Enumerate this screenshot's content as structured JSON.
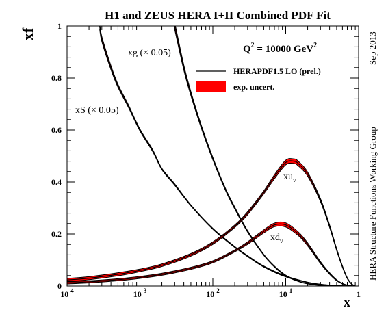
{
  "chart_data": {
    "type": "line",
    "title": "H1 and ZEUS HERA I+II Combined PDF Fit",
    "xlabel": "x",
    "ylabel": "xf",
    "x_scale": "log",
    "xlim": [
      0.0001,
      1
    ],
    "ylim": [
      0,
      1
    ],
    "x_ticks": [
      {
        "value": 0.0001,
        "base": "10",
        "exp": "-4"
      },
      {
        "value": 0.001,
        "base": "10",
        "exp": "-3"
      },
      {
        "value": 0.01,
        "base": "10",
        "exp": "-2"
      },
      {
        "value": 0.1,
        "base": "10",
        "exp": "-1"
      },
      {
        "value": 1,
        "base": "1",
        "exp": ""
      }
    ],
    "y_ticks": [
      {
        "value": 0,
        "label": "0"
      },
      {
        "value": 0.2,
        "label": "0.2"
      },
      {
        "value": 0.4,
        "label": "0.4"
      },
      {
        "value": 0.6,
        "label": "0.6"
      },
      {
        "value": 0.8,
        "label": "0.8"
      },
      {
        "value": 1,
        "label": "1"
      }
    ],
    "q2_label": {
      "prefix": "Q",
      "sup1": "2",
      "middle": " = 10000 GeV",
      "sup2": "2"
    },
    "legend": {
      "placement": "top-right",
      "entries": [
        {
          "label": "HERAPDF1.5 LO (prel.)",
          "style": "line"
        },
        {
          "label": "exp. uncert.",
          "style": "band"
        }
      ]
    },
    "side_labels": {
      "date": "Sep 2013",
      "group": "HERA Structure Functions Working Group"
    },
    "colors": {
      "central": "#000000",
      "band": "#ff0000"
    },
    "series": [
      {
        "id": "xg",
        "label_main": "xg (",
        "label_sub": "",
        "label_tail": "× 0.05)",
        "x": [
          0.00028,
          0.0003,
          0.0004,
          0.0005,
          0.0007,
          0.001,
          0.0015,
          0.002,
          0.003,
          0.005,
          0.01,
          0.02,
          0.03,
          0.05,
          0.1,
          0.2,
          0.3,
          0.5,
          0.7,
          0.9
        ],
        "y": [
          1.0,
          0.95,
          0.84,
          0.77,
          0.69,
          0.6,
          0.52,
          0.45,
          0.39,
          0.31,
          0.22,
          0.15,
          0.115,
          0.075,
          0.037,
          0.014,
          0.006,
          0.001,
          0.0002,
          0.0
        ],
        "err": [
          0.012,
          0.01,
          0.008,
          0.006,
          0.005,
          0.004,
          0.004,
          0.003,
          0.003,
          0.002,
          0.002,
          0.002,
          0.002,
          0.002,
          0.002,
          0.001,
          0.001,
          0.001,
          0.0005,
          0.0
        ]
      },
      {
        "id": "xS",
        "label_main": "xS (",
        "label_sub": "",
        "label_tail": "× 0.05)",
        "x": [
          0.003,
          0.004,
          0.005,
          0.007,
          0.01,
          0.015,
          0.02,
          0.03,
          0.05,
          0.07,
          0.1,
          0.15,
          0.2,
          0.3,
          0.5,
          0.7,
          0.9
        ],
        "y": [
          1.0,
          0.84,
          0.74,
          0.61,
          0.49,
          0.37,
          0.3,
          0.21,
          0.12,
          0.075,
          0.04,
          0.018,
          0.009,
          0.003,
          0.0005,
          0.0001,
          0.0
        ],
        "err": [
          0.014,
          0.01,
          0.008,
          0.006,
          0.005,
          0.004,
          0.004,
          0.003,
          0.002,
          0.002,
          0.002,
          0.001,
          0.001,
          0.001,
          0.0005,
          0.0002,
          0.0
        ]
      },
      {
        "id": "xuv",
        "label_main": "xu",
        "label_sub": "v",
        "label_tail": "",
        "x": [
          0.0001,
          0.0002,
          0.0005,
          0.001,
          0.002,
          0.005,
          0.01,
          0.02,
          0.03,
          0.05,
          0.07,
          0.1,
          0.13,
          0.15,
          0.2,
          0.3,
          0.4,
          0.5,
          0.6,
          0.7,
          0.8,
          0.9
        ],
        "y": [
          0.023,
          0.03,
          0.045,
          0.06,
          0.08,
          0.12,
          0.165,
          0.23,
          0.28,
          0.36,
          0.42,
          0.475,
          0.48,
          0.47,
          0.43,
          0.33,
          0.23,
          0.14,
          0.075,
          0.03,
          0.008,
          0.0
        ],
        "err": [
          0.006,
          0.006,
          0.006,
          0.005,
          0.005,
          0.005,
          0.005,
          0.005,
          0.006,
          0.006,
          0.008,
          0.009,
          0.009,
          0.009,
          0.008,
          0.006,
          0.005,
          0.004,
          0.003,
          0.002,
          0.001,
          0.0
        ]
      },
      {
        "id": "xdv",
        "label_main": "xd",
        "label_sub": "v",
        "label_tail": "",
        "x": [
          0.0001,
          0.0002,
          0.0005,
          0.001,
          0.002,
          0.005,
          0.01,
          0.02,
          0.03,
          0.05,
          0.07,
          0.1,
          0.15,
          0.2,
          0.3,
          0.4,
          0.5,
          0.6,
          0.7,
          0.8,
          0.9
        ],
        "y": [
          0.012,
          0.016,
          0.024,
          0.033,
          0.045,
          0.068,
          0.093,
          0.135,
          0.165,
          0.21,
          0.235,
          0.235,
          0.2,
          0.16,
          0.09,
          0.048,
          0.022,
          0.009,
          0.003,
          0.0006,
          0.0
        ],
        "err": [
          0.004,
          0.004,
          0.004,
          0.004,
          0.004,
          0.004,
          0.004,
          0.004,
          0.005,
          0.006,
          0.007,
          0.008,
          0.007,
          0.006,
          0.004,
          0.003,
          0.002,
          0.001,
          0.0008,
          0.0003,
          0.0
        ]
      }
    ]
  }
}
